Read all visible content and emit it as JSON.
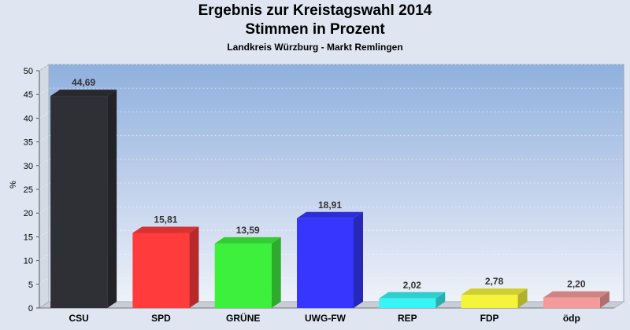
{
  "chart_data": {
    "type": "bar",
    "title": "Ergebnis zur Kreistagswahl 2014",
    "subtitle": "Stimmen in Prozent",
    "subsubtitle": "Landkreis Würzburg - Markt Remlingen",
    "ylabel": "%",
    "ylim": [
      0,
      50
    ],
    "yticks": [
      0,
      5,
      10,
      15,
      20,
      25,
      30,
      35,
      40,
      45,
      50
    ],
    "categories": [
      "CSU",
      "SPD",
      "GRÜNE",
      "UWG-FW",
      "REP",
      "FDP",
      "ödp"
    ],
    "values": [
      44.69,
      15.81,
      13.59,
      18.91,
      2.02,
      2.78,
      2.2
    ],
    "value_labels": [
      "44,69",
      "15,81",
      "13,59",
      "18,91",
      "2,02",
      "2,78",
      "2,20"
    ],
    "colors": [
      "#2f2f36",
      "#ff3b3b",
      "#3cf03c",
      "#3636ff",
      "#38f4f4",
      "#f4f43a",
      "#f49a9a"
    ],
    "grid": true
  }
}
